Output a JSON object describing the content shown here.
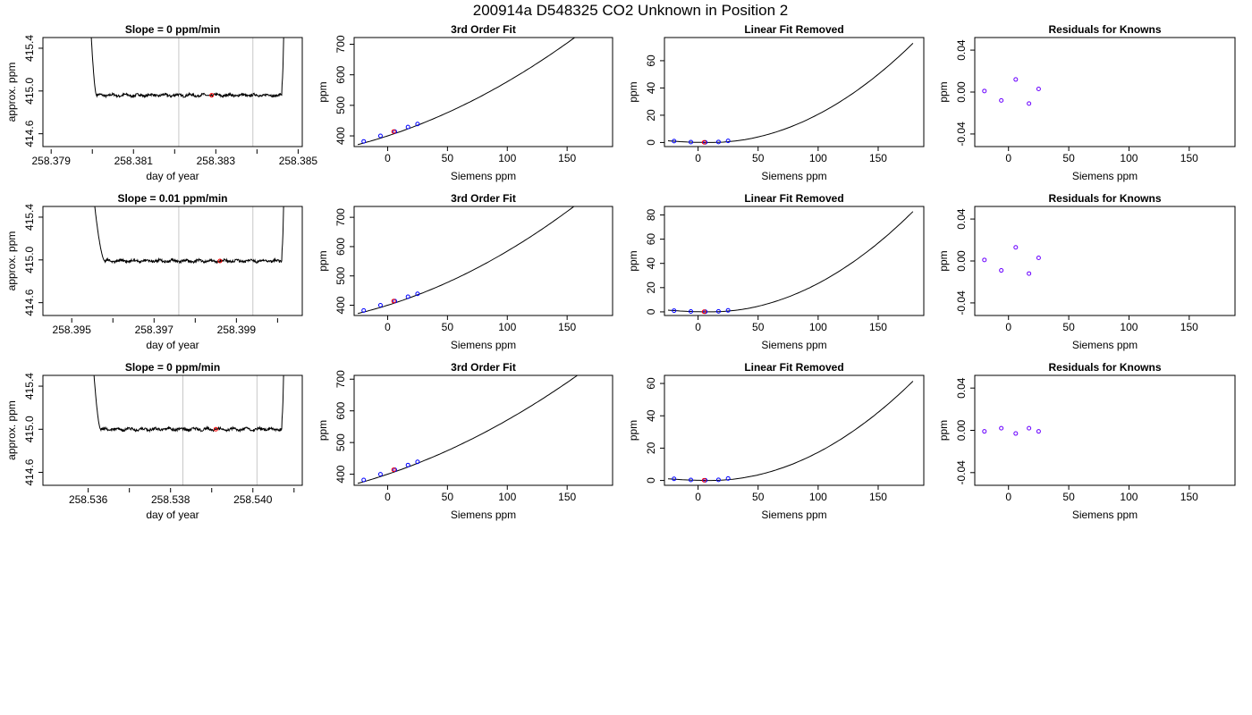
{
  "figure": {
    "title": "200914a      D548325    CO2 Unknown in Position  2"
  },
  "colors": {
    "line": "#000000",
    "known_points": "#0000ff",
    "unknown_point": "#ff0000",
    "residual_points": "#6a00ff",
    "vertical_markers": "#c8c8c8",
    "frame": "#000000"
  },
  "chart_data": [
    {
      "panel": "row1-time",
      "type": "line",
      "title": "Slope =  0  ppm/min",
      "xlabel": "day of year",
      "ylabel": "approx. ppm",
      "xlim": [
        258.3788,
        258.3851
      ],
      "ylim": [
        414.48,
        415.5
      ],
      "xticks": [
        258.379,
        258.381,
        258.383,
        258.385
      ],
      "xminor": [
        258.38,
        258.382,
        258.384
      ],
      "yticks": [
        414.6,
        415.0,
        415.4
      ],
      "vlines": [
        258.3821,
        258.3839
      ],
      "trace": {
        "start": 258.3798,
        "flat_start": 258.3801,
        "flat_end": 258.3846,
        "end": 258.3847,
        "level": 414.96,
        "noise": 0.012
      },
      "unknown_point": {
        "x": 258.3829,
        "y": 414.96
      }
    },
    {
      "panel": "row1-fit",
      "type": "scatter",
      "title": "3rd Order Fit",
      "xlabel": "Siemens ppm",
      "ylabel": "ppm",
      "xlim": [
        -28,
        188
      ],
      "ylim": [
        365,
        722
      ],
      "xticks": [
        0,
        50,
        100,
        150
      ],
      "yticks": [
        400,
        500,
        600,
        700
      ],
      "curve": {
        "x_start": -25,
        "x_end": 180,
        "a": 400,
        "b": 1.27,
        "c": 0.00505
      },
      "knowns": {
        "x": [
          -20,
          -6,
          6,
          17,
          25
        ],
        "y": [
          382,
          400,
          414,
          429,
          439
        ]
      },
      "unknown_point": {
        "x": 5,
        "y": 414
      }
    },
    {
      "panel": "row1-linrem",
      "type": "scatter",
      "title": "Linear Fit Removed",
      "xlabel": "Siemens ppm",
      "ylabel": "ppm",
      "xlim": [
        -28,
        188
      ],
      "ylim": [
        -3,
        77
      ],
      "xticks": [
        0,
        50,
        100,
        150
      ],
      "yticks": [
        0,
        20,
        40,
        60
      ],
      "curve": {
        "x_start": -25,
        "x_end": 180,
        "k": 0.00255,
        "x0": 10
      },
      "knowns": {
        "x": [
          -20,
          -6,
          6,
          17,
          25
        ],
        "y": [
          1.0,
          0.3,
          0.1,
          0.4,
          1.2
        ]
      },
      "unknown_point": {
        "x": 5,
        "y": 0.1
      }
    },
    {
      "panel": "row1-resid",
      "type": "scatter",
      "title": "Residuals for Knowns",
      "xlabel": "Siemens ppm",
      "ylabel": "ppm",
      "xlim": [
        -28,
        188
      ],
      "ylim": [
        -0.052,
        0.052
      ],
      "xticks": [
        0,
        50,
        100,
        150
      ],
      "yticks": [
        -0.04,
        0.0,
        0.04
      ],
      "ytick_labels": [
        "-0.04",
        "0.00",
        "0.04"
      ],
      "points": {
        "x": [
          -20,
          -6,
          6,
          17,
          25
        ],
        "y": [
          0.001,
          -0.008,
          0.012,
          -0.011,
          0.003
        ]
      }
    },
    {
      "panel": "row2-time",
      "type": "line",
      "title": "Slope =  0.01  ppm/min",
      "xlabel": "day of year",
      "ylabel": "approx. ppm",
      "xlim": [
        258.3943,
        258.4006
      ],
      "ylim": [
        414.48,
        415.5
      ],
      "xticks": [
        258.395,
        258.397,
        258.399
      ],
      "xminor": [
        258.396,
        258.398,
        258.4
      ],
      "yticks": [
        414.6,
        415.0,
        415.4
      ],
      "vlines": [
        258.3976,
        258.3994
      ],
      "trace": {
        "start": 258.3952,
        "flat_start": 258.3958,
        "flat_end": 258.4001,
        "end": 258.4002,
        "level": 414.99,
        "noise": 0.012
      },
      "unknown_point": {
        "x": 258.3986,
        "y": 414.99
      }
    },
    {
      "panel": "row2-fit",
      "type": "scatter",
      "title": "3rd Order Fit",
      "xlabel": "Siemens ppm",
      "ylabel": "ppm",
      "xlim": [
        -28,
        188
      ],
      "ylim": [
        365,
        737
      ],
      "xticks": [
        0,
        50,
        100,
        150
      ],
      "yticks": [
        400,
        500,
        600,
        700
      ],
      "curve": {
        "x_start": -25,
        "x_end": 180,
        "a": 400,
        "b": 1.27,
        "c": 0.00575
      },
      "knowns": {
        "x": [
          -20,
          -6,
          6,
          17,
          25
        ],
        "y": [
          382,
          400,
          414,
          429,
          439
        ]
      },
      "unknown_point": {
        "x": 5,
        "y": 414
      }
    },
    {
      "panel": "row2-linrem",
      "type": "scatter",
      "title": "Linear Fit Removed",
      "xlabel": "Siemens ppm",
      "ylabel": "ppm",
      "xlim": [
        -28,
        188
      ],
      "ylim": [
        -3,
        87
      ],
      "xticks": [
        0,
        50,
        100,
        150
      ],
      "yticks": [
        0,
        20,
        40,
        60,
        80
      ],
      "curve": {
        "x_start": -25,
        "x_end": 180,
        "k": 0.0029,
        "x0": 10
      },
      "knowns": {
        "x": [
          -20,
          -6,
          6,
          17,
          25
        ],
        "y": [
          1.0,
          0.3,
          0.1,
          0.4,
          1.2
        ]
      },
      "unknown_point": {
        "x": 5,
        "y": 0.1
      }
    },
    {
      "panel": "row2-resid",
      "type": "scatter",
      "title": "Residuals for Knowns",
      "xlabel": "Siemens ppm",
      "ylabel": "ppm",
      "xlim": [
        -28,
        188
      ],
      "ylim": [
        -0.052,
        0.052
      ],
      "xticks": [
        0,
        50,
        100,
        150
      ],
      "yticks": [
        -0.04,
        0.0,
        0.04
      ],
      "ytick_labels": [
        "-0.04",
        "0.00",
        "0.04"
      ],
      "points": {
        "x": [
          -20,
          -6,
          6,
          17,
          25
        ],
        "y": [
          0.001,
          -0.009,
          0.013,
          -0.012,
          0.003
        ]
      }
    },
    {
      "panel": "row3-time",
      "type": "line",
      "title": "Slope =  0  ppm/min",
      "xlabel": "day of year",
      "ylabel": "approx. ppm",
      "xlim": [
        258.5349,
        258.5412
      ],
      "ylim": [
        414.48,
        415.5
      ],
      "xticks": [
        258.536,
        258.538,
        258.54
      ],
      "xminor": [
        258.537,
        258.539,
        258.541
      ],
      "yticks": [
        414.6,
        415.0,
        415.4
      ],
      "vlines": [
        258.5383,
        258.5401
      ],
      "trace": {
        "start": 258.5359,
        "flat_start": 258.5363,
        "flat_end": 258.5407,
        "end": 258.5408,
        "level": 415.0,
        "noise": 0.012
      },
      "unknown_point": {
        "x": 258.5391,
        "y": 415.0
      }
    },
    {
      "panel": "row3-fit",
      "type": "scatter",
      "title": "3rd Order Fit",
      "xlabel": "Siemens ppm",
      "ylabel": "ppm",
      "xlim": [
        -28,
        188
      ],
      "ylim": [
        365,
        712
      ],
      "xticks": [
        0,
        50,
        100,
        150
      ],
      "yticks": [
        400,
        500,
        600,
        700
      ],
      "curve": {
        "x_start": -25,
        "x_end": 180,
        "a": 400,
        "b": 1.27,
        "c": 0.0044
      },
      "knowns": {
        "x": [
          -20,
          -6,
          6,
          17,
          25
        ],
        "y": [
          382,
          400,
          414,
          429,
          439
        ]
      },
      "unknown_point": {
        "x": 5,
        "y": 414
      }
    },
    {
      "panel": "row3-linrem",
      "type": "scatter",
      "title": "Linear Fit Removed",
      "xlabel": "Siemens ppm",
      "ylabel": "ppm",
      "xlim": [
        -28,
        188
      ],
      "ylim": [
        -3,
        65
      ],
      "xticks": [
        0,
        50,
        100,
        150
      ],
      "yticks": [
        0,
        20,
        40,
        60
      ],
      "curve": {
        "x_start": -25,
        "x_end": 180,
        "k": 0.00215,
        "x0": 10
      },
      "knowns": {
        "x": [
          -20,
          -6,
          6,
          17,
          25
        ],
        "y": [
          1.0,
          0.3,
          0.1,
          0.4,
          1.2
        ]
      },
      "unknown_point": {
        "x": 5,
        "y": 0.1
      }
    },
    {
      "panel": "row3-resid",
      "type": "scatter",
      "title": "Residuals for Knowns",
      "xlabel": "Siemens ppm",
      "ylabel": "ppm",
      "xlim": [
        -28,
        188
      ],
      "ylim": [
        -0.052,
        0.052
      ],
      "xticks": [
        0,
        50,
        100,
        150
      ],
      "yticks": [
        -0.04,
        0.0,
        0.04
      ],
      "ytick_labels": [
        "-0.04",
        "0.00",
        "0.04"
      ],
      "points": {
        "x": [
          -20,
          -6,
          6,
          17,
          25
        ],
        "y": [
          -0.001,
          0.002,
          -0.003,
          0.002,
          -0.001
        ]
      }
    }
  ]
}
